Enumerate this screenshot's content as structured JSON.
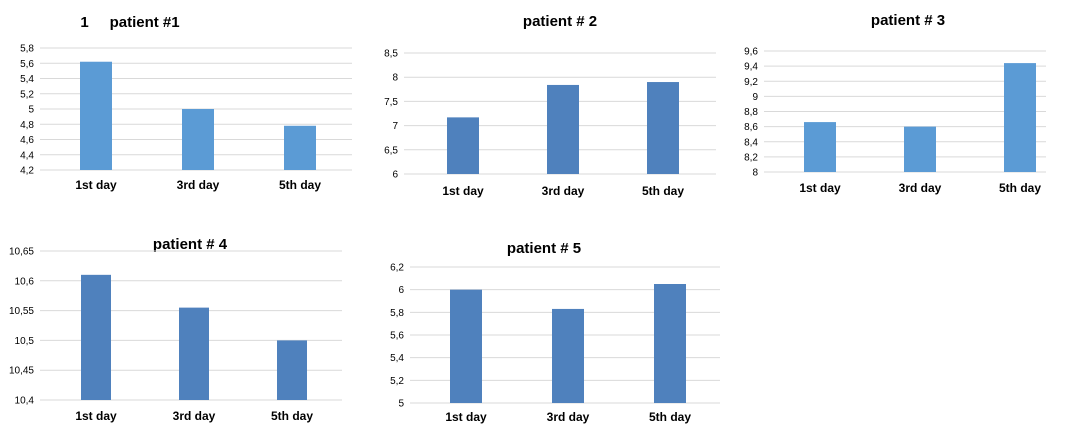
{
  "colors": {
    "light": "#5b9bd5",
    "dark": "#4f81bd",
    "grid": "#d9d9d9"
  },
  "chart_data": [
    {
      "type": "bar",
      "title": "1     patient #1",
      "categories": [
        "1st day",
        "3rd day",
        "5th day"
      ],
      "values": [
        5.62,
        5.0,
        4.78
      ],
      "ylim": [
        4.2,
        5.8
      ],
      "yticks": [
        "4,2",
        "4,4",
        "4,6",
        "4,8",
        "5",
        "5,2",
        "5,4",
        "5,6",
        "5,8"
      ],
      "grid": true,
      "bar_color": "light"
    },
    {
      "type": "bar",
      "title": "patient # 2",
      "categories": [
        "1st day",
        "3rd day",
        "5th day"
      ],
      "values": [
        7.17,
        7.84,
        7.9
      ],
      "ylim": [
        6,
        8.5
      ],
      "yticks": [
        "6",
        "6,5",
        "7",
        "7,5",
        "8",
        "8,5"
      ],
      "grid": true,
      "bar_color": "dark"
    },
    {
      "type": "bar",
      "title": "patient # 3",
      "categories": [
        "1st day",
        "3rd day",
        "5th day"
      ],
      "values": [
        8.66,
        8.6,
        9.44
      ],
      "ylim": [
        8,
        9.6
      ],
      "yticks": [
        "8",
        "8,2",
        "8,4",
        "8,6",
        "8,8",
        "9",
        "9,2",
        "9,4",
        "9,6"
      ],
      "grid": true,
      "bar_color": "light"
    },
    {
      "type": "bar",
      "title": "patient # 4",
      "categories": [
        "1st day",
        "3rd day",
        "5th day"
      ],
      "values": [
        10.61,
        10.555,
        10.5
      ],
      "ylim": [
        10.4,
        10.65
      ],
      "yticks": [
        "10,4",
        "10,45",
        "10,5",
        "10,55",
        "10,6",
        "10,65"
      ],
      "grid": true,
      "bar_color": "dark"
    },
    {
      "type": "bar",
      "title": "patient # 5",
      "categories": [
        "1st day",
        "3rd day",
        "5th day"
      ],
      "values": [
        6.0,
        5.83,
        6.05
      ],
      "ylim": [
        5,
        6.2
      ],
      "yticks": [
        "5",
        "5,2",
        "5,4",
        "5,6",
        "5,8",
        "6",
        "6,2"
      ],
      "grid": true,
      "bar_color": "dark"
    }
  ]
}
